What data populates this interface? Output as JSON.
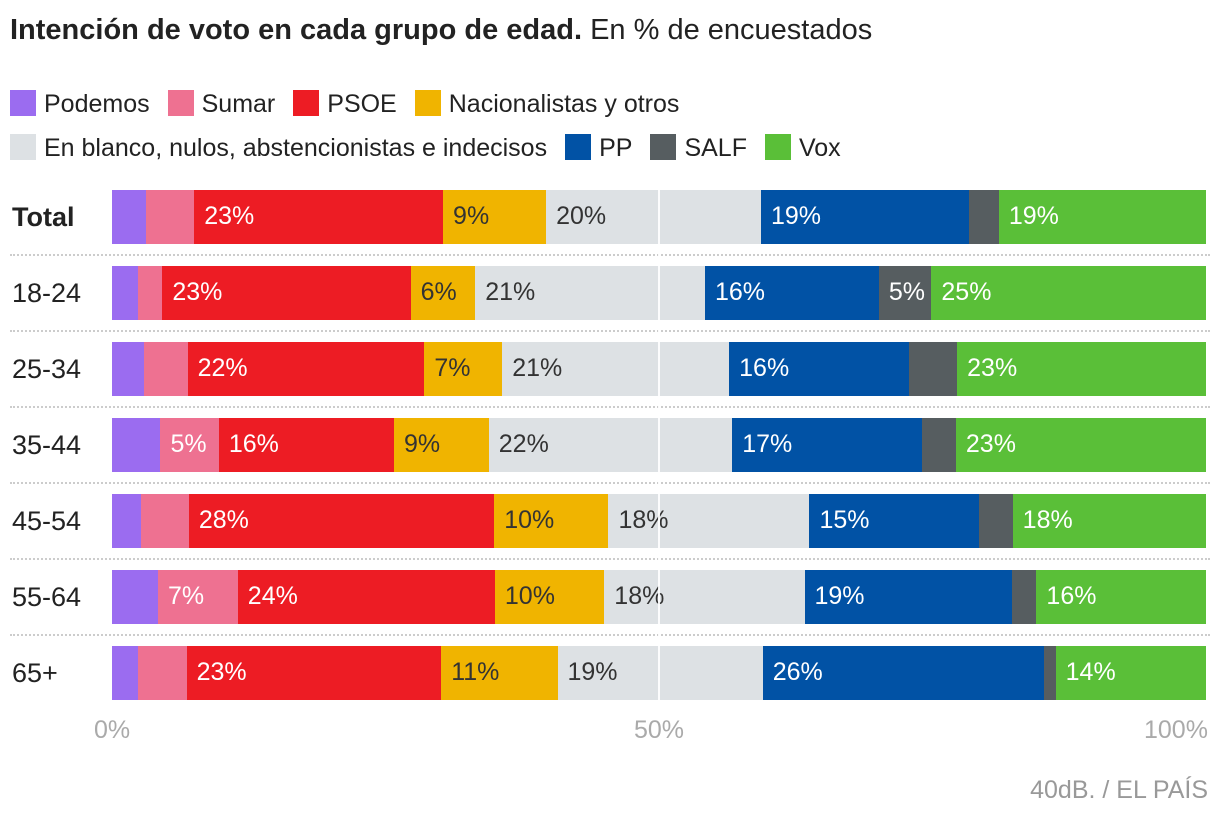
{
  "title": {
    "bold": "Intención de voto en cada grupo de edad.",
    "rest": " En % de encuestados"
  },
  "chart_data": {
    "type": "bar",
    "orientation": "horizontal",
    "stacked": true,
    "xlim": [
      0,
      100
    ],
    "x_ticks": [
      "0%",
      "50%",
      "100%"
    ],
    "legend_position": "top",
    "series": [
      {
        "name": "Podemos",
        "color": "#9b6cf0",
        "text": "#fff"
      },
      {
        "name": "Sumar",
        "color": "#ee7191",
        "text": "#fff"
      },
      {
        "name": "PSOE",
        "color": "#ed1c24",
        "text": "#fff"
      },
      {
        "name": "Nacionalistas y otros",
        "color": "#f0b400",
        "text": "#333"
      },
      {
        "name": "En blanco, nulos, abstencionistas e indecisos",
        "color": "#dde1e4",
        "text": "#333"
      },
      {
        "name": "PP",
        "color": "#0152a5",
        "text": "#fff"
      },
      {
        "name": "SALF",
        "color": "#565d60",
        "text": "#fff"
      },
      {
        "name": "Vox",
        "color": "#5abf38",
        "text": "#fff"
      }
    ],
    "categories": [
      "Total",
      "18-24",
      "25-34",
      "35-44",
      "45-54",
      "55-64",
      "65+"
    ],
    "values": [
      [
        3.1,
        4.4,
        22.7,
        9.4,
        19.6,
        19.0,
        2.7,
        18.9
      ],
      [
        2.4,
        2.2,
        22.7,
        5.9,
        21.0,
        15.9,
        4.8,
        25.1
      ],
      [
        2.9,
        4.0,
        21.6,
        7.1,
        20.7,
        16.4,
        4.4,
        22.7
      ],
      [
        4.4,
        5.3,
        15.9,
        8.6,
        22.1,
        17.2,
        3.1,
        22.7
      ],
      [
        2.6,
        4.4,
        27.8,
        10.4,
        18.3,
        15.4,
        3.1,
        17.6
      ],
      [
        4.2,
        7.3,
        23.5,
        10.0,
        18.3,
        19.0,
        2.2,
        15.5
      ],
      [
        2.4,
        4.4,
        23.2,
        10.6,
        18.7,
        25.6,
        1.1,
        13.7
      ]
    ]
  },
  "source": "40dB. / EL PAÍS"
}
